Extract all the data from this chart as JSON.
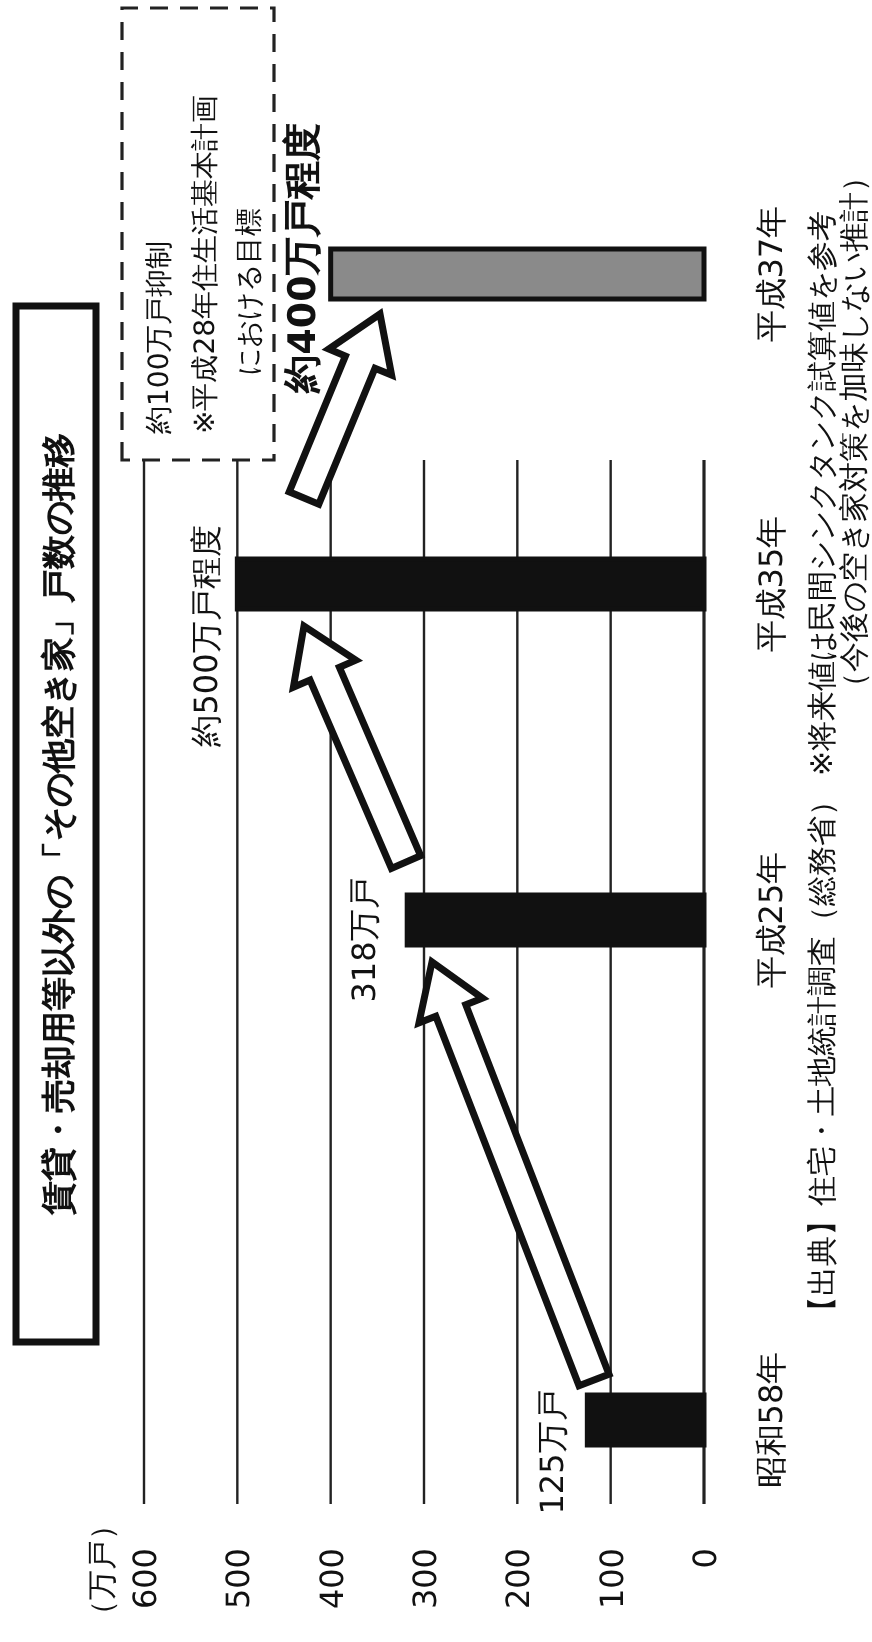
{
  "chart_data": {
    "type": "bar",
    "orientation": "horizontal",
    "title": "賃貸・売却用等以外の「その他空き家」戸数の推移",
    "categories": [
      "平成37年",
      "平成35年",
      "平成25年",
      "昭和58年"
    ],
    "values": [
      400,
      500,
      318,
      125
    ],
    "value_labels": [
      "約400万戸程度",
      "約500万戸程度",
      "318万戸",
      "125万戸"
    ],
    "colors": [
      "#8a8a8a",
      "#111111",
      "#111111",
      "#111111"
    ],
    "xlim": [
      600,
      0
    ],
    "xticks": [
      600,
      500,
      400,
      300,
      200,
      100,
      0
    ],
    "grid": "x",
    "annotations": [
      "約100万戸抑制",
      "※平成28年住生活基本計画",
      "における目標",
      "【出典】住宅・土地統計調査（総務省）",
      "※将来値は民間シンクタンク試算値を参考",
      "（今後の空き家対策を加味しない推計）",
      "（万戸）"
    ]
  }
}
